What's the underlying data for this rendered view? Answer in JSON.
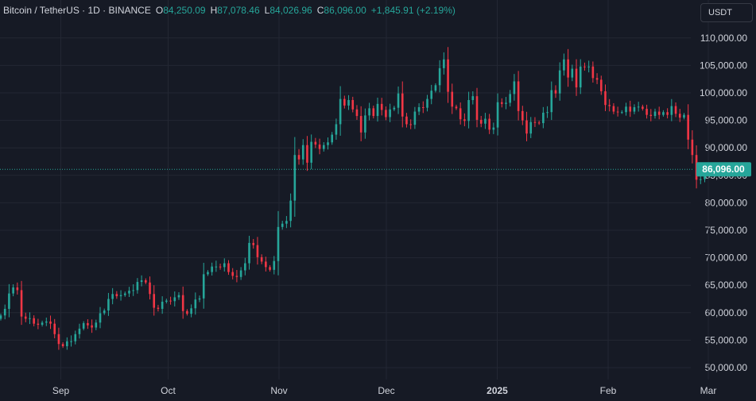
{
  "legend": {
    "symbol": "Bitcoin / TetherUS · 1D · BINANCE",
    "open_label": "O",
    "open": "84,250.09",
    "high_label": "H",
    "high": "87,078.46",
    "low_label": "L",
    "low": "84,026.96",
    "close_label": "C",
    "close": "86,096.00",
    "change": "+1,845.91 (+2.19%)"
  },
  "currency_button": "USDT",
  "colors": {
    "up": "#26a69a",
    "down": "#f23645",
    "background": "#161a25",
    "grid": "#232733",
    "text": "#d1d4dc",
    "price_line": "#26a69a"
  },
  "chart_data": {
    "type": "candlestick",
    "ylim": [
      47000,
      114500
    ],
    "y_ticks": [
      50000,
      55000,
      60000,
      65000,
      70000,
      75000,
      80000,
      85000,
      90000,
      95000,
      100000,
      105000,
      110000
    ],
    "y_tick_labels": [
      "50,000.00",
      "55,000.00",
      "60,000.00",
      "65,000.00",
      "70,000.00",
      "75,000.00",
      "80,000.00",
      "85,000.00",
      "90,000.00",
      "95,000.00",
      "100,000.00",
      "105,000.00",
      "110,000.00"
    ],
    "x_range": [
      "2024-08-15",
      "2025-03-02"
    ],
    "x_ticks": [
      "2024-09-01",
      "2024-10-01",
      "2024-11-01",
      "2024-12-01",
      "2025-01-01",
      "2025-02-01",
      "2025-03-01"
    ],
    "x_tick_labels": [
      "Sep",
      "Oct",
      "Nov",
      "Dec",
      "2025",
      "Feb",
      "Mar"
    ],
    "current_price": 86096,
    "current_price_label": "86,096.00",
    "grid": true,
    "closes": [
      59500,
      60700,
      63500,
      64600,
      64100,
      59300,
      58900,
      59000,
      58000,
      57800,
      58200,
      58400,
      58000,
      56100,
      54300,
      53900,
      54800,
      54800,
      56100,
      57100,
      58100,
      57700,
      57300,
      58200,
      59900,
      60400,
      62500,
      63400,
      63000,
      63200,
      63500,
      64000,
      64100,
      65600,
      65900,
      65500,
      63400,
      60900,
      60700,
      62000,
      62200,
      62100,
      62800,
      63200,
      60300,
      59800,
      60800,
      62400,
      62600,
      67000,
      67400,
      68400,
      68400,
      68300,
      69000,
      67400,
      66700,
      66500,
      67700,
      69000,
      72700,
      72300,
      70100,
      69300,
      68300,
      67800,
      69400,
      75600,
      76200,
      76700,
      80400,
      88700,
      87900,
      90500,
      87300,
      91100,
      90600,
      89800,
      90500,
      91000,
      92400,
      94300,
      98900,
      97700,
      98700,
      97000,
      95800,
      92800,
      95900,
      97200,
      95800,
      98000,
      96900,
      95600,
      97000,
      97300,
      99900,
      95700,
      94300,
      94200,
      96600,
      97400,
      97300,
      98900,
      100400,
      101400,
      104500,
      106100,
      100200,
      97500,
      97200,
      95200,
      94900,
      98700,
      99400,
      95100,
      94400,
      95300,
      93300,
      93700,
      98300,
      98000,
      98200,
      99800,
      102100,
      96700,
      95000,
      92600,
      94700,
      94600,
      94500,
      96400,
      96500,
      100500,
      99900,
      104100,
      106100,
      102800,
      104400,
      101000,
      104800,
      104700,
      104800,
      102700,
      102400,
      100300,
      97800,
      97600,
      96600,
      96500,
      96500,
      97500,
      96600,
      97400,
      97500,
      97100,
      96000,
      95800,
      96600,
      96000,
      96500,
      96000,
      97600,
      96200,
      95500,
      96000,
      91500,
      88700,
      84200,
      84300,
      86096
    ]
  },
  "axis_title": ""
}
